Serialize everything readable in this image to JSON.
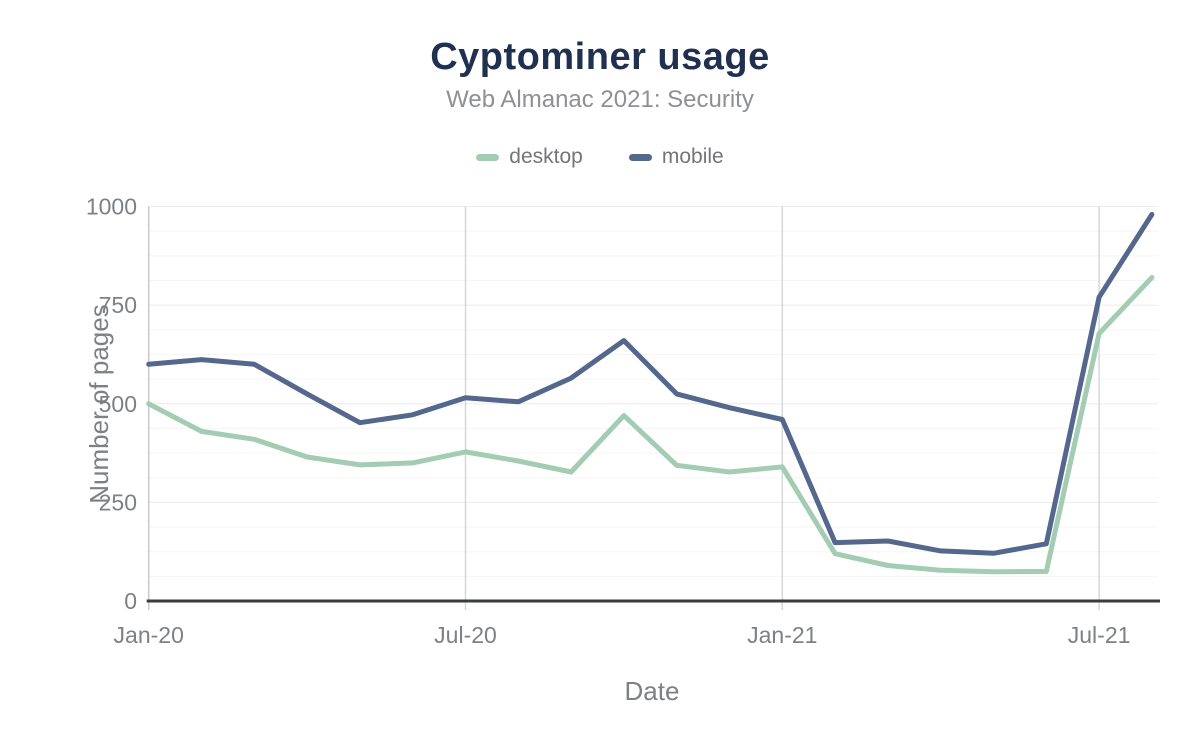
{
  "header": {
    "title": "Cyptominer usage",
    "subtitle": "Web Almanac 2021: Security"
  },
  "legend": [
    {
      "label": "desktop",
      "color": "#a3ccb3"
    },
    {
      "label": "mobile",
      "color": "#54678c"
    }
  ],
  "axes": {
    "y_title": "Number of pages",
    "x_title": "Date",
    "y_ticks": [
      0,
      250,
      500,
      750,
      1000
    ],
    "x_tick_labels": [
      "Jan-20",
      "Jul-20",
      "Jan-21",
      "Jul-21"
    ]
  },
  "chart_data": {
    "type": "line",
    "title": "Cyptominer usage",
    "subtitle": "Web Almanac 2021: Security",
    "xlabel": "Date",
    "ylabel": "Number of pages",
    "ylim": [
      0,
      1000
    ],
    "grid": {
      "y_major_step": 250,
      "y_minor_step": 62.5,
      "vertical_at_tick_indices": [
        0,
        6,
        12,
        18
      ]
    },
    "legend_position": "top",
    "x": [
      "Jan-20",
      "Feb-20",
      "Mar-20",
      "Apr-20",
      "May-20",
      "Jun-20",
      "Jul-20",
      "Aug-20",
      "Sep-20",
      "Oct-20",
      "Nov-20",
      "Dec-20",
      "Jan-21",
      "Feb-21",
      "Mar-21",
      "Apr-21",
      "May-21",
      "Jun-21",
      "Jul-21",
      "Aug-21"
    ],
    "x_axis_tick_indices": [
      0,
      6,
      12,
      18
    ],
    "series": [
      {
        "name": "desktop",
        "color": "#a3ccb3",
        "values": [
          500,
          430,
          410,
          365,
          345,
          350,
          378,
          355,
          327,
          470,
          344,
          327,
          340,
          120,
          90,
          78,
          74,
          75,
          678,
          820
        ]
      },
      {
        "name": "mobile",
        "color": "#54678c",
        "values": [
          600,
          612,
          600,
          525,
          452,
          472,
          515,
          505,
          565,
          660,
          525,
          490,
          460,
          148,
          152,
          127,
          121,
          145,
          770,
          980
        ]
      }
    ]
  },
  "colors": {
    "title": "#1f3050",
    "subtitle": "#8e9093",
    "tick_text": "#7d8184",
    "x_axis_line": "#3a3b3d",
    "y_axis_line": "#c8c9ca",
    "vertical_gridline": "#d6d7d8",
    "major_gridline": "#ececed",
    "minor_gridline": "#f5f5f6",
    "background": "#ffffff"
  }
}
